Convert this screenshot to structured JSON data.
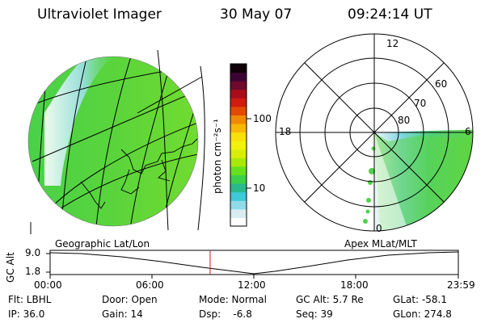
{
  "header": {
    "title": "Ultraviolet Imager",
    "date": "30 May 07",
    "time": "09:24:14 UT"
  },
  "colorbar": {
    "unit_label": "photon cm⁻²s⁻¹",
    "ticks": [
      "100",
      "10"
    ],
    "colors": [
      "#ffffff",
      "#d8ecf2",
      "#8fdbe9",
      "#3ec8d8",
      "#2bb88a",
      "#3ccf4a",
      "#66e01e",
      "#a8e80a",
      "#d8ee0a",
      "#f2f20c",
      "#f8e00a",
      "#f7b707",
      "#f08a06",
      "#e24a04",
      "#cf1c10",
      "#a80d1c",
      "#6e0a2c",
      "#3c0432",
      "#100008"
    ]
  },
  "polar_plot": {
    "clock_labels": [
      "12",
      "18",
      "6",
      "0"
    ],
    "lat_labels": [
      "60",
      "70",
      "80"
    ]
  },
  "geo_label": "Geographic Lat/Lon",
  "apex_label": "Apex MLat/MLT",
  "timeline": {
    "ylabel": "GC Alt",
    "yticks": [
      "9.0",
      "1.8"
    ],
    "xticks": [
      "00:00",
      "06:00",
      "12:00",
      "18:00",
      "23:59"
    ],
    "current_fraction": 0.392
  },
  "status": {
    "row1": [
      "Flt: LBHL",
      "Door: Open",
      "Mode: Normal",
      "GC Alt: 5.7 Re",
      "GLat: -58.1"
    ],
    "row2": [
      "IP: 36.0",
      "Gain: 14",
      "Dsp:    -6.8",
      "Seq: 39",
      "GLon: 274.8"
    ]
  }
}
